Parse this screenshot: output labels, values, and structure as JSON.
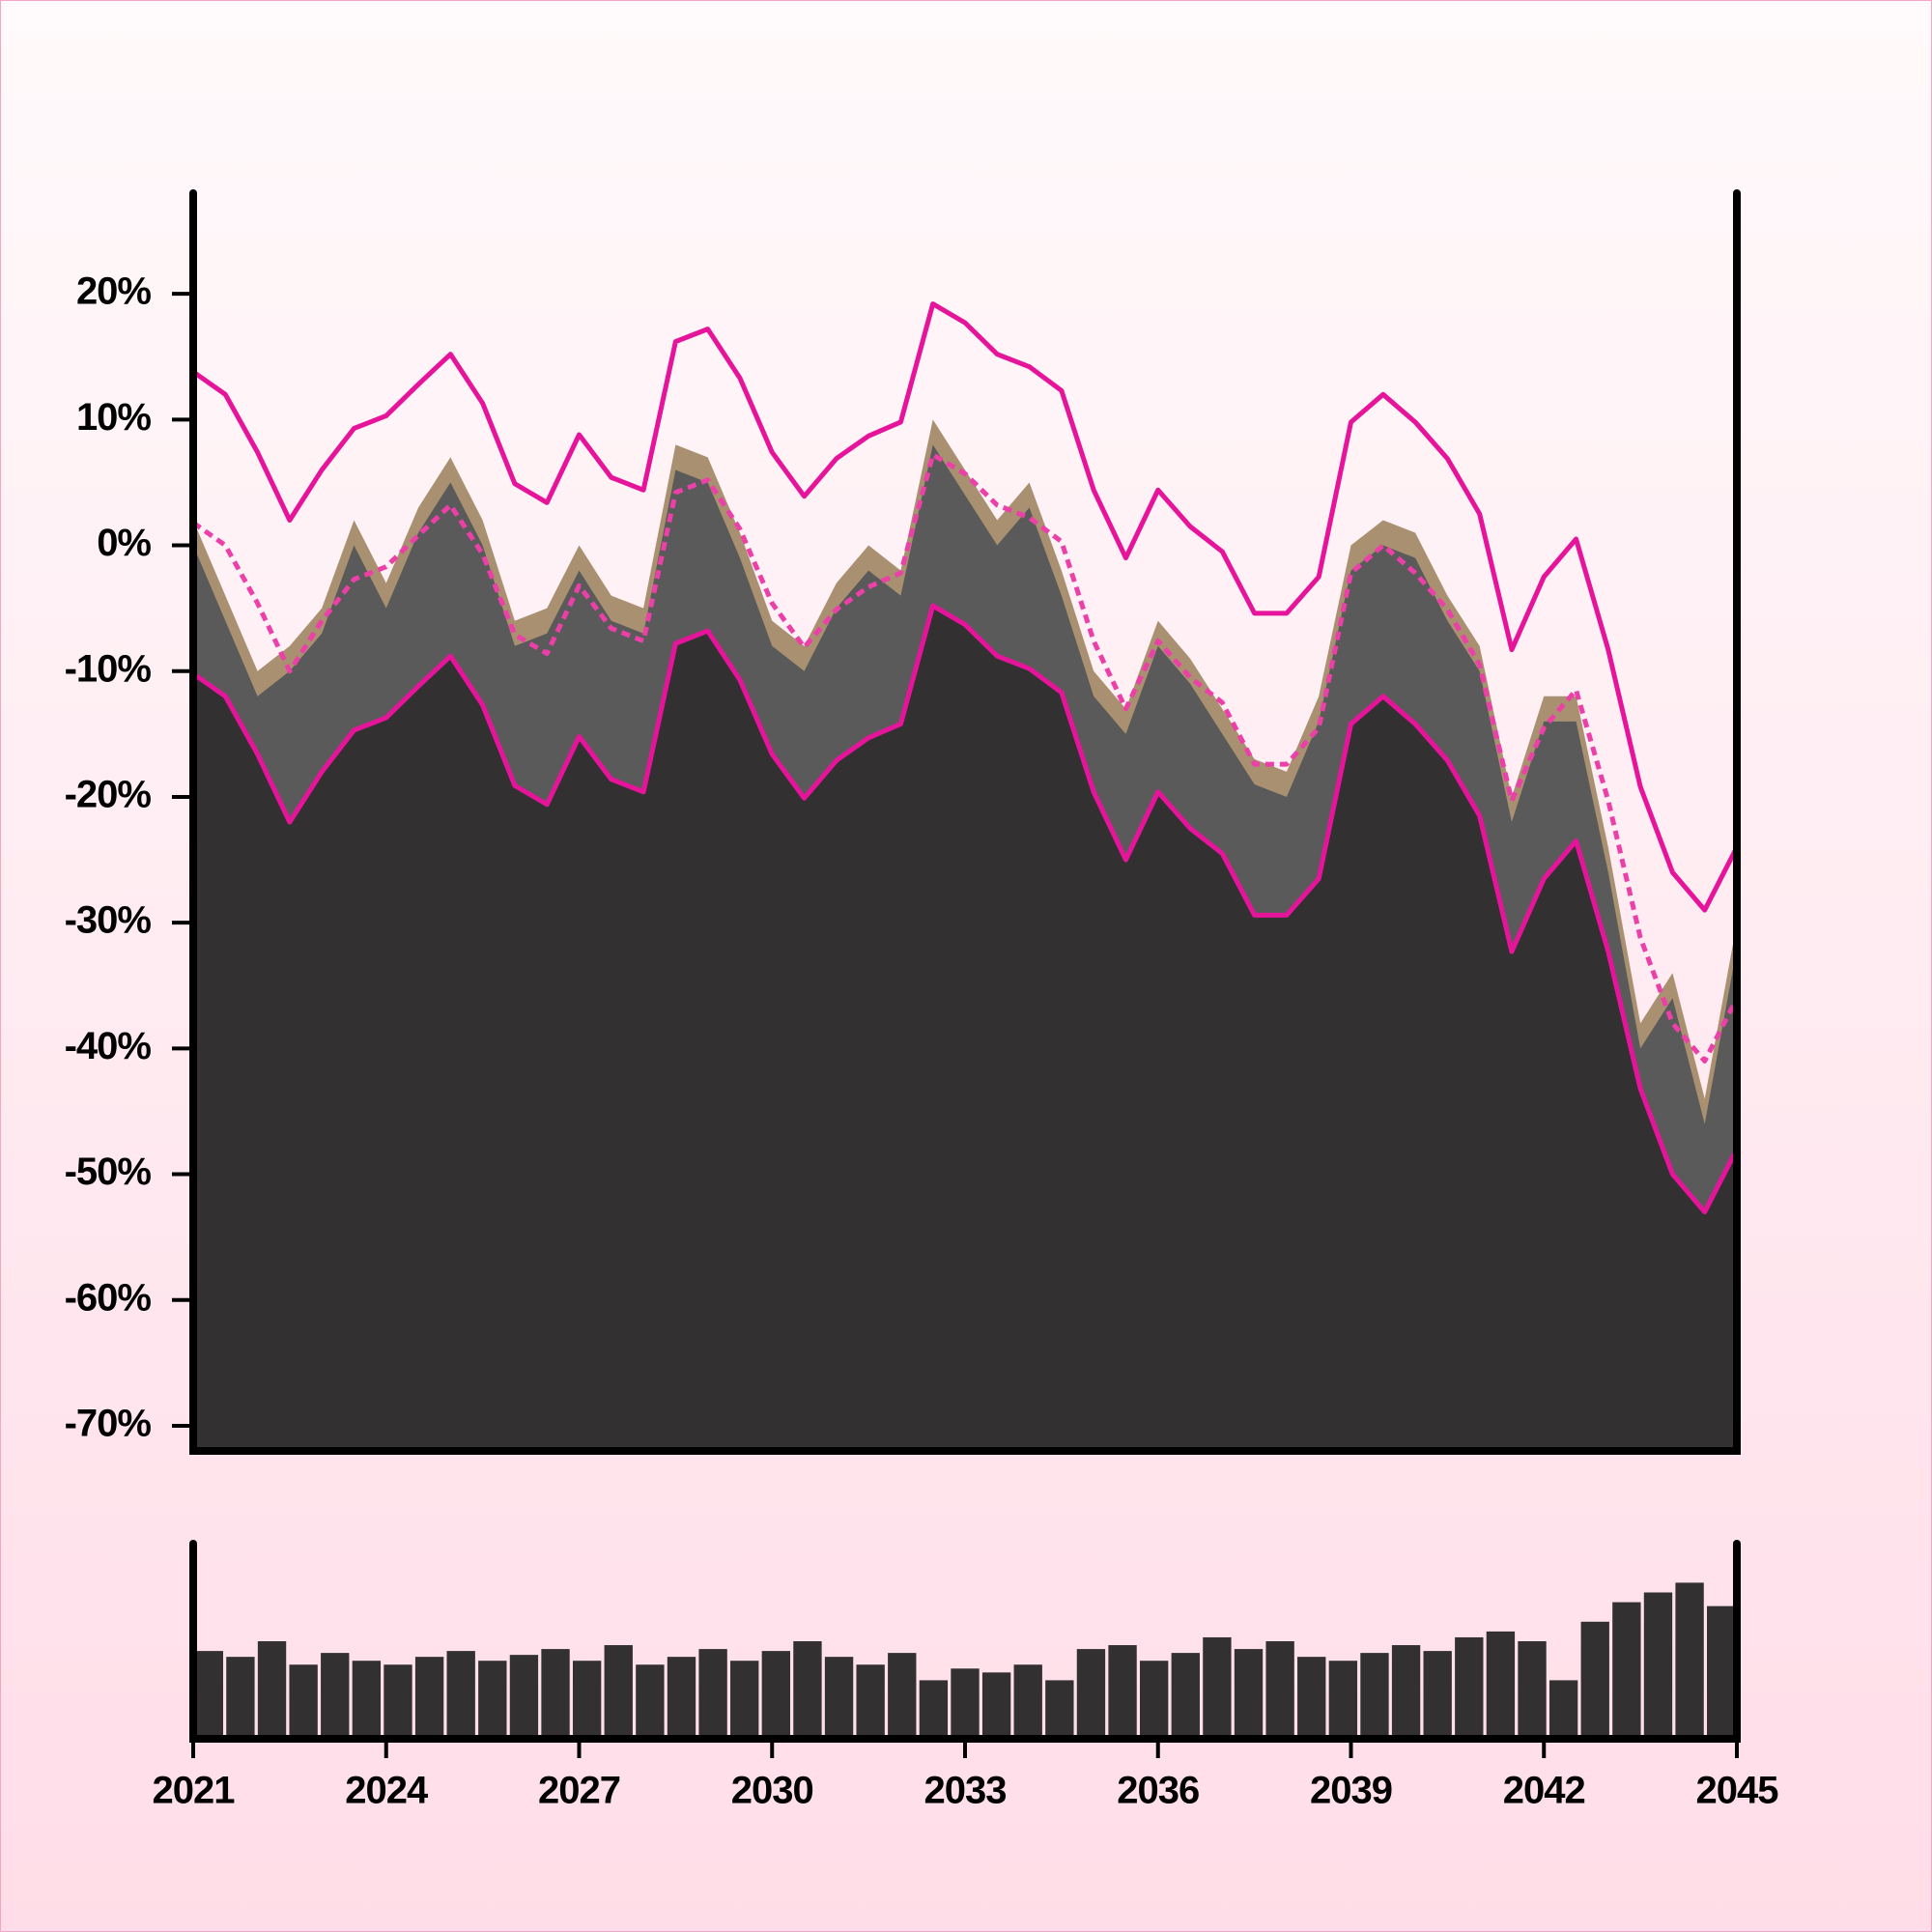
{
  "chart_data": [
    {
      "type": "area",
      "x": [
        2021,
        2021.5,
        2022,
        2022.5,
        2023,
        2023.5,
        2024,
        2024.5,
        2025,
        2025.5,
        2026,
        2026.5,
        2027,
        2027.5,
        2028,
        2028.5,
        2029,
        2029.5,
        2030,
        2030.5,
        2031,
        2031.5,
        2032,
        2032.5,
        2033,
        2033.5,
        2034,
        2034.5,
        2035,
        2035.5,
        2036,
        2036.5,
        2037,
        2037.5,
        2038,
        2038.5,
        2039,
        2039.5,
        2040,
        2040.5,
        2041,
        2041.5,
        2042,
        2042.5,
        2043,
        2043.5,
        2044,
        2044.5,
        2045
      ],
      "series": [
        {
          "color": "#a89070",
          "style": "area",
          "values": [
            2,
            -4,
            -10,
            -8,
            -5,
            2,
            -3,
            3,
            7,
            2,
            -6,
            -5,
            0,
            -4,
            -5,
            8,
            7,
            1,
            -6,
            -8,
            -3,
            0,
            -2,
            10,
            6,
            2,
            5,
            -2,
            -10,
            -13,
            -6,
            -9,
            -13,
            -17,
            -18,
            -12,
            0,
            2,
            1,
            -4,
            -8,
            -20,
            -12,
            -12,
            -24,
            -38,
            -34,
            -44,
            -30
          ]
        },
        {
          "color": "#5a5a5a",
          "style": "area",
          "values": [
            0,
            -6,
            -12,
            -10,
            -7,
            0,
            -5,
            1,
            5,
            0,
            -8,
            -7,
            -2,
            -6,
            -7,
            6,
            5,
            -1,
            -8,
            -10,
            -5,
            -2,
            -4,
            8,
            4,
            0,
            3,
            -4,
            -12,
            -15,
            -8,
            -11,
            -15,
            -19,
            -20,
            -14,
            -2,
            0,
            -1,
            -6,
            -10,
            -22,
            -14,
            -14,
            -26,
            -40,
            -36,
            -46,
            -32
          ]
        },
        {
          "color": "#e6149a",
          "fill": "#333031",
          "style": "area-line",
          "values": [
            -10.2,
            -12,
            -16.6,
            -22,
            -18,
            -14.7,
            -13.7,
            -11.2,
            -8.8,
            -12.7,
            -19.1,
            -20.6,
            -15.2,
            -18.6,
            -19.6,
            -7.8,
            -6.8,
            -10.7,
            -16.6,
            -20.1,
            -17.1,
            -15.3,
            -14.2,
            -4.8,
            -6.3,
            -8.8,
            -9.8,
            -11.7,
            -19.6,
            -25,
            -19.6,
            -22.5,
            -24.5,
            -29.4,
            -29.4,
            -26.5,
            -14.2,
            -12,
            -14.2,
            -17.1,
            -21.5,
            -32.3,
            -26.5,
            -23.5,
            -32.3,
            -43.2,
            -50,
            -53,
            -48
          ]
        },
        {
          "color": "#e6149a",
          "style": "line",
          "values": [
            13.8,
            12,
            7.4,
            2,
            6,
            9.3,
            10.3,
            12.8,
            15.2,
            11.3,
            4.9,
            3.4,
            8.8,
            5.4,
            4.4,
            16.2,
            17.2,
            13.3,
            7.4,
            3.9,
            6.9,
            8.7,
            9.8,
            19.2,
            17.7,
            15.2,
            14.2,
            12.3,
            4.4,
            -1,
            4.4,
            1.5,
            -0.5,
            -5.4,
            -5.4,
            -2.5,
            9.8,
            12,
            9.8,
            6.9,
            2.5,
            -8.3,
            -2.5,
            0.5,
            -8.3,
            -19.2,
            -26,
            -29,
            -24
          ]
        },
        {
          "color": "#ec3fa8",
          "style": "dashed",
          "values": [
            1.8,
            0,
            -4.6,
            -10,
            -6,
            -2.7,
            -1.7,
            0.8,
            3.2,
            -0.7,
            -7.1,
            -8.6,
            -3.2,
            -6.6,
            -7.6,
            4.2,
            5.2,
            1.3,
            -4.6,
            -8.1,
            -5.1,
            -3.3,
            -2.2,
            7.2,
            5.7,
            3.2,
            2.2,
            0.3,
            -7.6,
            -13,
            -7.6,
            -10.5,
            -12.5,
            -17.4,
            -17.4,
            -14.5,
            -2.2,
            0,
            -2.2,
            -5.1,
            -9.5,
            -20.3,
            -14.5,
            -11.5,
            -20.3,
            -31.2,
            -38,
            -41,
            -36
          ]
        }
      ],
      "xlim": [
        2021,
        2045
      ],
      "ylim": [
        -72,
        28
      ],
      "yticks": [
        {
          "value": 20,
          "label": "20%"
        },
        {
          "value": 10,
          "label": "10%"
        },
        {
          "value": 0,
          "label": "0%"
        },
        {
          "value": -10,
          "label": "-10%"
        },
        {
          "value": -20,
          "label": "-20%"
        },
        {
          "value": -30,
          "label": "-30%"
        },
        {
          "value": -40,
          "label": "-40%"
        },
        {
          "value": -50,
          "label": "-50%"
        },
        {
          "value": -60,
          "label": "-60%"
        },
        {
          "value": -70,
          "label": "-70%"
        }
      ]
    },
    {
      "type": "bar",
      "x": [
        2021,
        2021.5,
        2022,
        2022.5,
        2023,
        2023.5,
        2024,
        2024.5,
        2025,
        2025.5,
        2026,
        2026.5,
        2027,
        2027.5,
        2028,
        2028.5,
        2029,
        2029.5,
        2030,
        2030.5,
        2031,
        2031.5,
        2032,
        2032.5,
        2033,
        2033.5,
        2034,
        2034.5,
        2035,
        2035.5,
        2036,
        2036.5,
        2037,
        2037.5,
        2038,
        2038.5,
        2039,
        2039.5,
        2040,
        2040.5,
        2041,
        2041.5,
        2042,
        2042.5,
        2043,
        2043.5,
        2044,
        2044.5,
        2045
      ],
      "values": [
        45,
        42,
        50,
        38,
        44,
        40,
        38,
        42,
        45,
        40,
        43,
        46,
        40,
        48,
        38,
        42,
        46,
        40,
        45,
        50,
        42,
        38,
        44,
        30,
        36,
        34,
        38,
        30,
        46,
        48,
        40,
        44,
        52,
        46,
        50,
        42,
        40,
        44,
        48,
        45,
        52,
        55,
        50,
        30,
        60,
        70,
        75,
        80,
        68
      ],
      "color": "#333031",
      "xlim": [
        2021,
        2045
      ],
      "ylim": [
        0,
        100
      ],
      "xticks": [
        2021,
        2024,
        2027,
        2030,
        2033,
        2036,
        2039,
        2042,
        2045
      ]
    }
  ]
}
